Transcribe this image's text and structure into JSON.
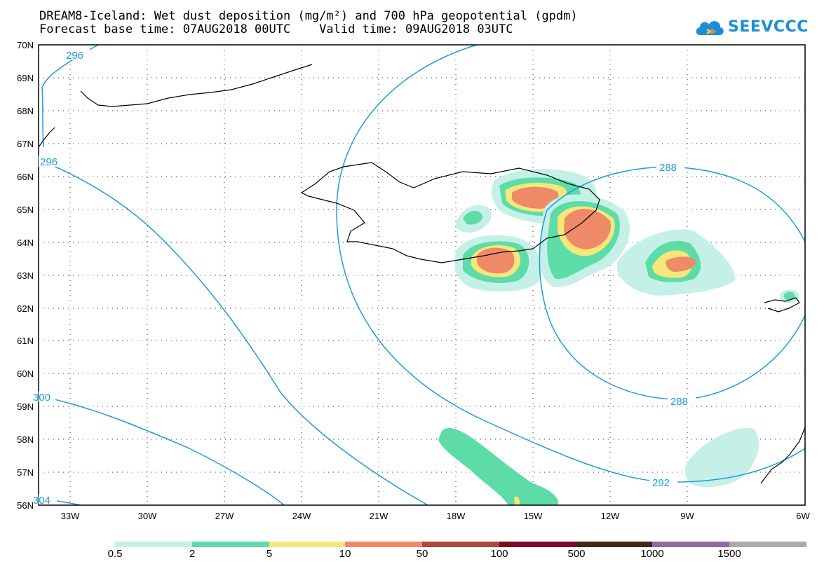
{
  "title": {
    "line1": "DREAM8-Iceland: Wet dust deposition (mg/m²) and 700 hPa geopotential (gpdm)",
    "line2": "Forecast base time: 07AUG2018 00UTC    Valid time: 09AUG2018 03UTC"
  },
  "logo": {
    "text": "SEEVCCC",
    "icon": "cloud-icon",
    "color": "#1b8fd6"
  },
  "map": {
    "lat_labels": [
      "70N",
      "69N",
      "68N",
      "67N",
      "66N",
      "65N",
      "64N",
      "63N",
      "62N",
      "61N",
      "60N",
      "59N",
      "58N",
      "57N",
      "56N"
    ],
    "lon_labels": [
      "33W",
      "30W",
      "27W",
      "24W",
      "21W",
      "18W",
      "15W",
      "12W",
      "9W",
      "6W"
    ],
    "contour_labels": [
      "296",
      "296",
      "300",
      "304",
      "288",
      "288",
      "292"
    ],
    "contour_color": "#1e9be0"
  },
  "legend": {
    "labels": [
      "0.5",
      "2",
      "5",
      "10",
      "50",
      "100",
      "500",
      "1000",
      "1500"
    ],
    "colors": [
      "#c4f0e8",
      "#5ddca8",
      "#f7e67a",
      "#ee8a68",
      "#a94a3e",
      "#7a0b25",
      "#3b2a1a",
      "#8f6aa2",
      "#aaaaaa"
    ]
  }
}
